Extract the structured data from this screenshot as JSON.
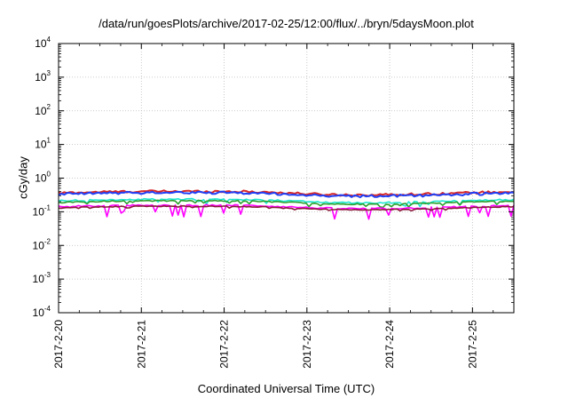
{
  "chart_data": {
    "type": "line",
    "title": "/data/run/goesPlots/archive/2017-02-25/12:00/flux/../bryn/5daysMoon.plot",
    "xlabel": "Coordinated Universal Time (UTC)",
    "ylabel": "cGy/day",
    "x_ticks": [
      "2017-2-20",
      "2017-2-21",
      "2017-2-22",
      "2017-2-23",
      "2017-2-24",
      "2017-2-25"
    ],
    "xlim": [
      "2017-02-20 00:00",
      "2017-02-25 12:00"
    ],
    "y_scale": "log",
    "ylim": [
      0.0001,
      10000
    ],
    "y_ticks": [
      {
        "base": "10",
        "exp": "-4"
      },
      {
        "base": "10",
        "exp": "-3"
      },
      {
        "base": "10",
        "exp": "-2"
      },
      {
        "base": "10",
        "exp": "-1"
      },
      {
        "base": "10",
        "exp": "0"
      },
      {
        "base": "10",
        "exp": "1"
      },
      {
        "base": "10",
        "exp": "2"
      },
      {
        "base": "10",
        "exp": "3"
      },
      {
        "base": "10",
        "exp": "4"
      }
    ],
    "grid": true,
    "series": [
      {
        "color": "#d62728",
        "base": 0.36,
        "noise": 0.08,
        "dip": 0.0
      },
      {
        "color": "#1f3ff5",
        "base": 0.33,
        "noise": 0.09,
        "dip": 0.0
      },
      {
        "color": "#1fe6d0",
        "base": 0.21,
        "noise": 0.05,
        "dip": 0.25
      },
      {
        "color": "#2ca02c",
        "base": 0.19,
        "noise": 0.04,
        "dip": 0.2
      },
      {
        "color": "#ff00ff",
        "base": 0.14,
        "noise": 0.05,
        "dip": 0.55
      },
      {
        "color": "#8b1a3a",
        "base": 0.13,
        "noise": 0.03,
        "dip": 0.1
      }
    ]
  }
}
